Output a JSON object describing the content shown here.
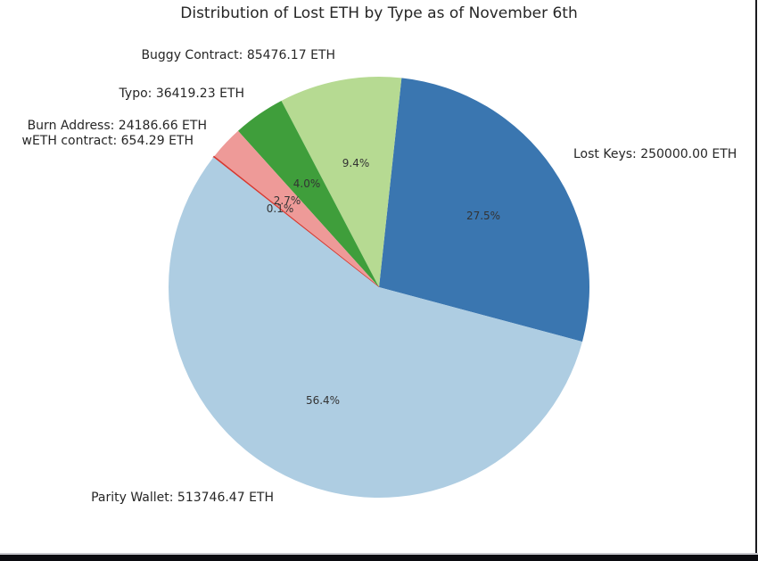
{
  "window": {
    "background_color": "#ffffff",
    "bottom_bar_color": "#0b0b10",
    "right_border_color": "#1a1a1e"
  },
  "chart_data": {
    "type": "pie",
    "title": "Distribution of Lost ETH by Type as of November 6th",
    "unit": "ETH",
    "start_angle_deg": -15,
    "counterclock": true,
    "label_distance": 1.12,
    "pct_distance": 0.6,
    "text_color": "#262626",
    "slices": [
      {
        "label": "Lost Keys",
        "value": 250000.0,
        "pct": 27.5,
        "label_text": "Lost Keys: 250000.00 ETH",
        "pct_text": "27.5%",
        "color": "#3a76b0",
        "stroke_width": 0
      },
      {
        "label": "Buggy Contract",
        "value": 85476.17,
        "pct": 9.4,
        "label_text": "Buggy Contract: 85476.17 ETH",
        "pct_text": "9.4%",
        "color": "#b6da92",
        "stroke_width": 0
      },
      {
        "label": "Typo",
        "value": 36419.23,
        "pct": 4.0,
        "label_text": "Typo: 36419.23 ETH",
        "pct_text": "4.0%",
        "color": "#3f9e3b",
        "stroke_width": 0
      },
      {
        "label": "Burn Address",
        "value": 24186.66,
        "pct": 2.7,
        "label_text": "Burn Address: 24186.66 ETH",
        "pct_text": "2.7%",
        "color": "#ee9a98",
        "stroke_width": 0
      },
      {
        "label": "wETH contract",
        "value": 654.29,
        "pct": 0.1,
        "label_text": "wETH contract: 654.29 ETH",
        "pct_text": "0.1%",
        "color": "#d7382f",
        "stroke_width": 1.2
      },
      {
        "label": "Parity Wallet",
        "value": 513746.47,
        "pct": 56.4,
        "label_text": "Parity Wallet: 513746.47 ETH",
        "pct_text": "56.4%",
        "color": "#aecde2",
        "stroke_width": 0
      }
    ]
  }
}
